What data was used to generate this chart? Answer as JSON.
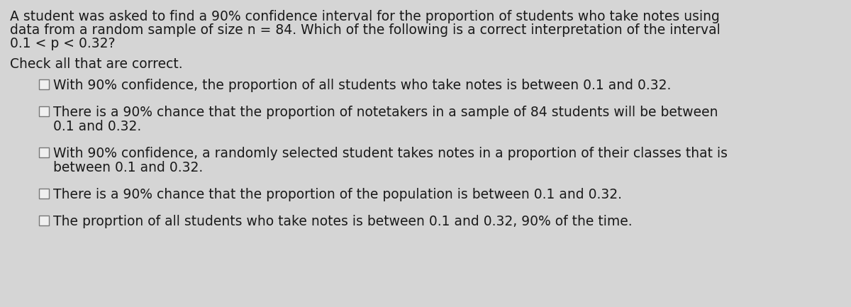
{
  "background_color": "#d5d5d5",
  "header_lines": [
    "A student was asked to find a 90% confidence interval for the proportion of students who take notes using",
    "data from a random sample of size n = 84. Which of the following is a correct interpretation of the interval",
    "0.1 < p < 0.32?"
  ],
  "subheader_text": "Check all that are correct.",
  "options": [
    [
      "With 90% confidence, the proportion of all students who take notes is between 0.1 and 0.32."
    ],
    [
      "There is a 90% chance that the proportion of notetakers in a sample of 84 students will be between",
      "0.1 and 0.32."
    ],
    [
      "With 90% confidence, a randomly selected student takes notes in a proportion of their classes that is",
      "between 0.1 and 0.32."
    ],
    [
      "There is a 90% chance that the proportion of the population is between 0.1 and 0.32."
    ],
    [
      "The proprtion of all students who take notes is between 0.1 and 0.32, 90% of the time."
    ]
  ],
  "text_color": "#1a1a1a",
  "checkbox_color": "#f0f0f0",
  "checkbox_border": "#777777",
  "font_size_header": 13.5,
  "font_size_sub": 13.5,
  "font_size_option": 13.5,
  "fig_width": 12.0,
  "fig_height": 4.33,
  "dpi": 100
}
